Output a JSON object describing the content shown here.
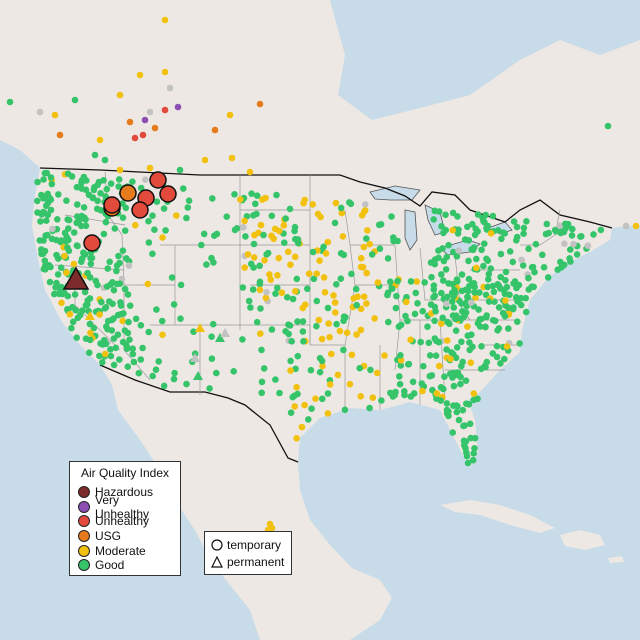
{
  "legend": {
    "title": "Air Quality Index",
    "categories": [
      {
        "key": "hazardous",
        "label": "Hazardous",
        "color": "#7e2b2b"
      },
      {
        "key": "very_unhealthy",
        "label": "Very Unhealthy",
        "color": "#8e4fb3"
      },
      {
        "key": "unhealthy",
        "label": "Unhealthy",
        "color": "#e24a3b"
      },
      {
        "key": "usg",
        "label": "USG",
        "color": "#e57b1c"
      },
      {
        "key": "moderate",
        "label": "Moderate",
        "color": "#f2c10f"
      },
      {
        "key": "good",
        "label": "Good",
        "color": "#35c46a"
      }
    ]
  },
  "monitor_type_legend": {
    "temporary": "temporary",
    "permanent": "permanent"
  },
  "colors": {
    "water": "#c7dbe9",
    "land": "#ede8e3",
    "no_data": "#c2c2c2"
  }
}
